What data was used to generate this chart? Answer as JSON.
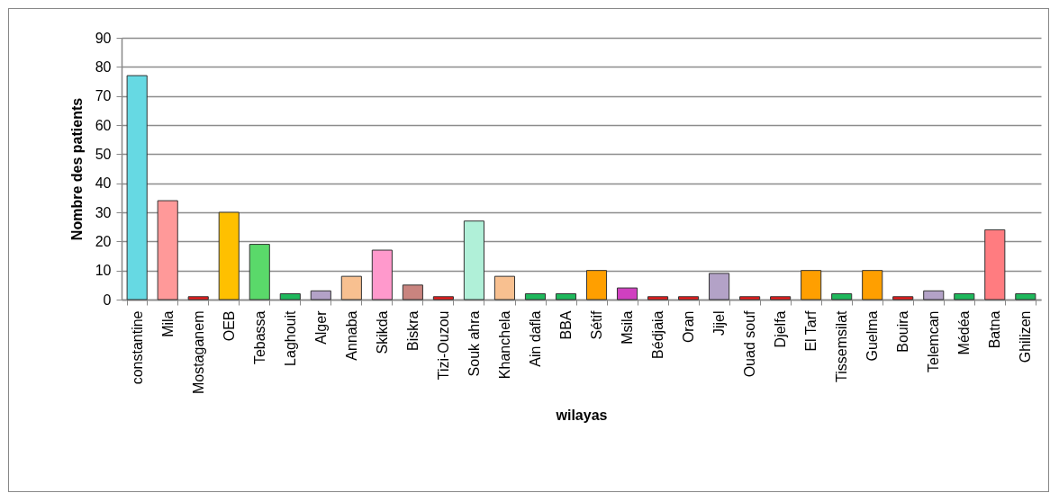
{
  "chart_data": {
    "type": "bar",
    "xlabel": "wilayas",
    "ylabel": "Nombre des patients",
    "categories": [
      "constantine",
      "Mila",
      "Mostaganem",
      "OEB",
      "Tebassa",
      "Laghouit",
      "Alger",
      "Annaba",
      "Skikda",
      "Biskra",
      "Tizi-Ouzou",
      "Souk ahra",
      "Khanchela",
      "Ain dafla",
      "BBA",
      "Sétif",
      "Msila",
      "Bédjaia",
      "Oran",
      "Jijel",
      "Ouad souf",
      "Djelfa",
      "El Tarf",
      "Tissemsilat",
      "Guelma",
      "Bouira",
      "Telemcan",
      "Médéa",
      "Batna",
      "Ghilizen"
    ],
    "values": [
      77,
      34,
      1,
      30,
      19,
      2,
      3,
      8,
      17,
      5,
      1,
      27,
      8,
      2,
      2,
      10,
      4,
      1,
      1,
      9,
      1,
      1,
      10,
      2,
      10,
      1,
      3,
      2,
      24,
      2
    ],
    "colors": [
      "#66d9e3",
      "#ff9999",
      "#ee1c1c",
      "#ffc000",
      "#5ad96a",
      "#1fb85c",
      "#b3a2c7",
      "#f8c090",
      "#ff99cc",
      "#c9847f",
      "#ee1c1c",
      "#b0f0d8",
      "#f8c090",
      "#1fb85c",
      "#1fb85c",
      "#ff9f00",
      "#d040c0",
      "#ee1c1c",
      "#ee1c1c",
      "#b3a2c7",
      "#ee1c1c",
      "#ee1c1c",
      "#ff9f00",
      "#1fb85c",
      "#ff9f00",
      "#ee1c1c",
      "#b3a2c7",
      "#1fb85c",
      "#ff7c80",
      "#1fb85c"
    ],
    "ylim": [
      0,
      90
    ],
    "yticks": [
      0,
      10,
      20,
      30,
      40,
      50,
      60,
      70,
      80,
      90
    ],
    "grid": "y"
  }
}
